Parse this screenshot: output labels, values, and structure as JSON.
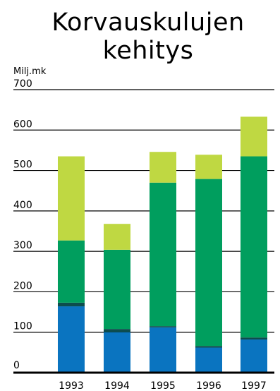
{
  "chart_data": {
    "type": "bar",
    "stacked": true,
    "title": [
      "Korvauskulujen",
      "kehitys"
    ],
    "unit": "Milj.mk",
    "xlabel": "",
    "ylabel": "",
    "ylim": [
      0,
      700
    ],
    "yticks": [
      "0",
      "100",
      "200",
      "300",
      "400",
      "500",
      "600",
      "700"
    ],
    "grid": true,
    "categories": [
      "1993",
      "1994",
      "1995",
      "1996",
      "1997"
    ],
    "series": [
      {
        "values": [
          164,
          100,
          112,
          62,
          82
        ],
        "color": "#0a74c0"
      },
      {
        "values": [
          9,
          8,
          3,
          4,
          5
        ],
        "color": "#0d4d4d"
      },
      {
        "values": [
          154,
          196,
          355,
          413,
          448
        ],
        "color": "#009e5e"
      },
      {
        "values": [
          208,
          64,
          76,
          60,
          98
        ],
        "color": "#bfd842"
      }
    ],
    "totals": [
      535,
      368,
      546,
      539,
      633
    ]
  }
}
